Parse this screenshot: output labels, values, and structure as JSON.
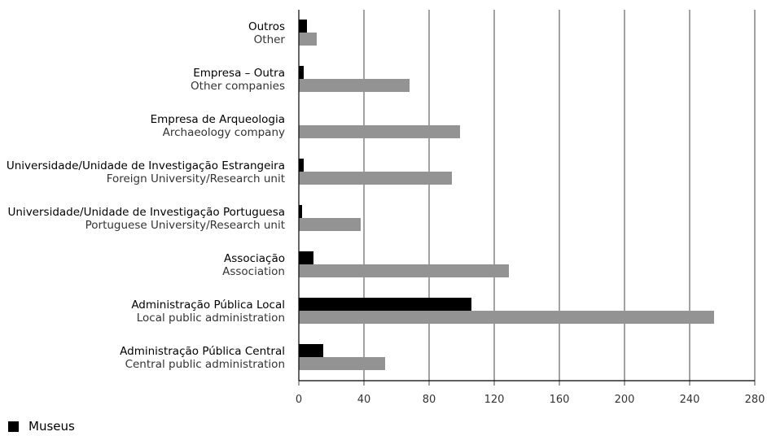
{
  "chart_data": {
    "type": "bar",
    "orientation": "horizontal",
    "categories": [
      {
        "pt": "Outros",
        "en": "Other"
      },
      {
        "pt": "Empresa – Outra",
        "en": "Other companies"
      },
      {
        "pt": "Empresa de Arqueologia",
        "en": "Archaeology company"
      },
      {
        "pt": "Universidade/Unidade de Investigação Estrangeira",
        "en": "Foreign University/Research unit"
      },
      {
        "pt": "Universidade/Unidade de Investigação Portuguesa",
        "en": "Portuguese University/Research unit"
      },
      {
        "pt": "Associação",
        "en": "Association"
      },
      {
        "pt": "Administração Pública Local",
        "en": "Local public administration"
      },
      {
        "pt": "Administração Pública Central",
        "en": "Central public administration"
      }
    ],
    "series": [
      {
        "name": "Museus",
        "color": "#000000",
        "values": [
          5,
          3,
          0,
          3,
          2,
          9,
          106,
          15
        ]
      },
      {
        "name": "",
        "color": "#939393",
        "values": [
          11,
          68,
          99,
          94,
          38,
          129,
          255,
          53
        ]
      }
    ],
    "xlim": [
      0,
      280
    ],
    "xticks": [
      "0",
      "40",
      "80",
      "120",
      "160",
      "200",
      "240",
      "280"
    ],
    "grid": "vertical",
    "legend": "bottom-left"
  }
}
